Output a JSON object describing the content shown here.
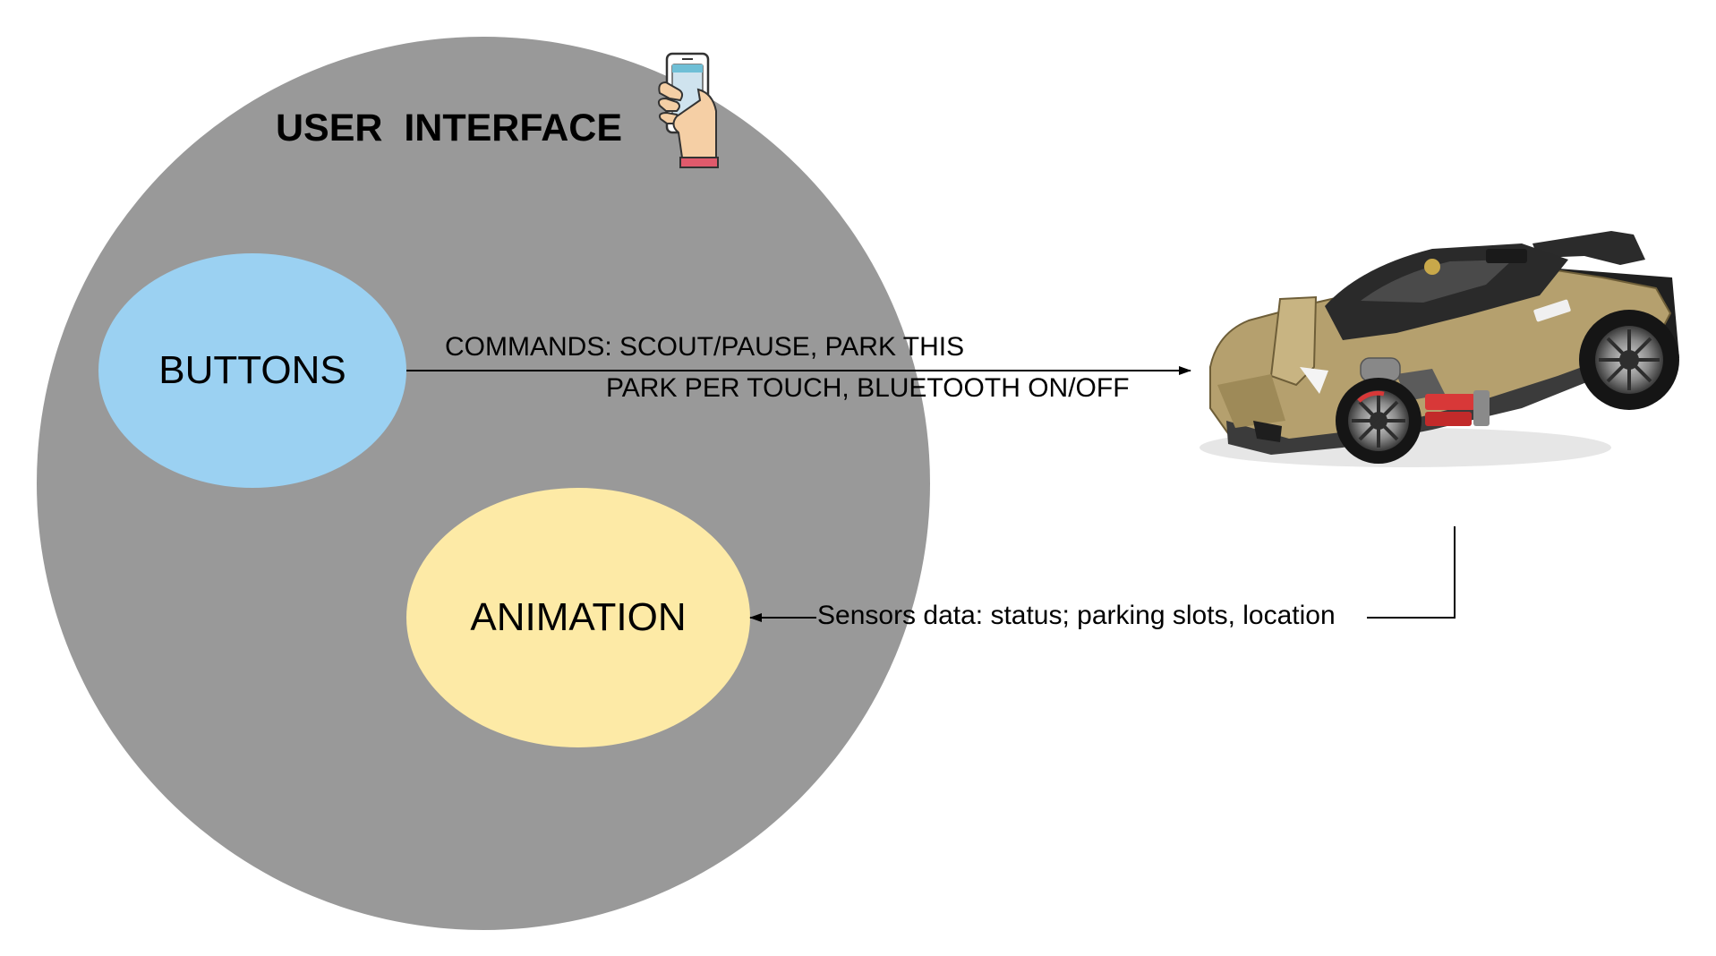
{
  "title": "USER  INTERFACE",
  "nodes": {
    "buttons": {
      "label": "BUTTONS",
      "color": "#9bd1f2"
    },
    "animation": {
      "label": "ANIMATION",
      "color": "#fdeaa6"
    }
  },
  "ui_circle_color": "#999999",
  "edges": {
    "commands": {
      "line1": "COMMANDS: SCOUT/PAUSE, PARK THIS",
      "line2": "PARK PER TOUCH, BLUETOOTH ON/OFF"
    },
    "sensors": {
      "label": "Sensors data:  status; parking slots, location"
    }
  },
  "icons": {
    "phone": "hand-holding-smartphone-icon",
    "car": "rc-car-image"
  }
}
